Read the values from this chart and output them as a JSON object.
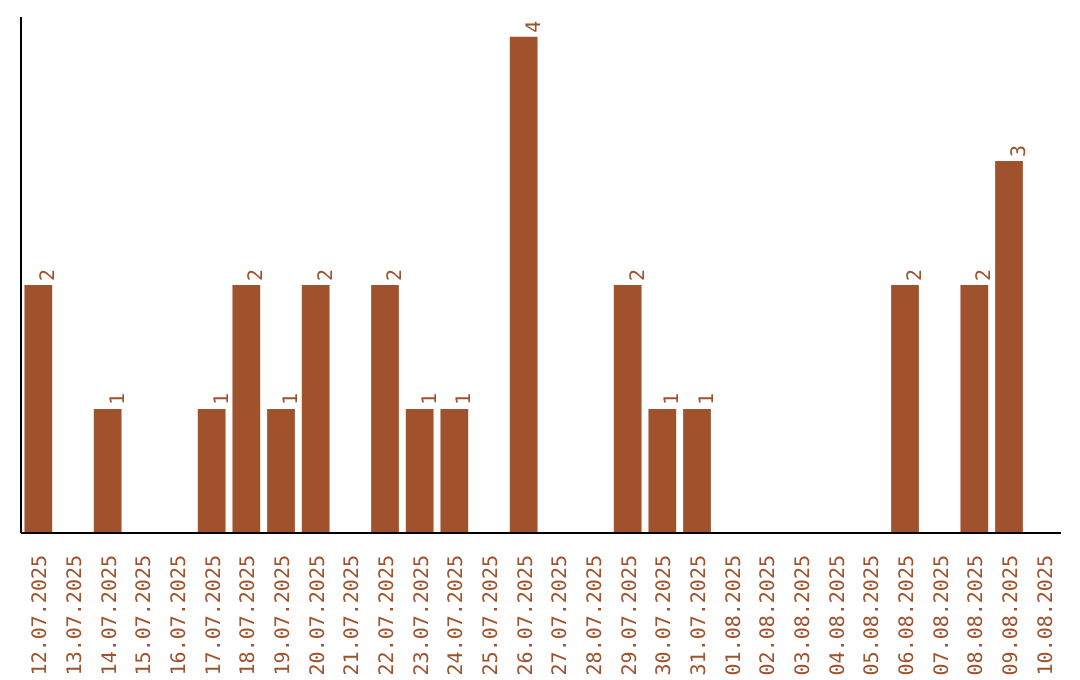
{
  "chart_data": {
    "type": "bar",
    "categories": [
      "12.07.2025",
      "13.07.2025",
      "14.07.2025",
      "15.07.2025",
      "16.07.2025",
      "17.07.2025",
      "18.07.2025",
      "19.07.2025",
      "20.07.2025",
      "21.07.2025",
      "22.07.2025",
      "23.07.2025",
      "24.07.2025",
      "25.07.2025",
      "26.07.2025",
      "27.07.2025",
      "28.07.2025",
      "29.07.2025",
      "30.07.2025",
      "31.07.2025",
      "01.08.2025",
      "02.08.2025",
      "03.08.2025",
      "04.08.2025",
      "05.08.2025",
      "06.08.2025",
      "07.08.2025",
      "08.08.2025",
      "09.08.2025",
      "10.08.2025"
    ],
    "values": [
      2,
      0,
      1,
      0,
      0,
      1,
      2,
      1,
      2,
      0,
      2,
      1,
      1,
      0,
      4,
      0,
      0,
      2,
      1,
      1,
      0,
      0,
      0,
      0,
      0,
      2,
      0,
      2,
      3,
      0
    ],
    "value_labels": [
      "2",
      null,
      "1",
      null,
      null,
      "1",
      "2",
      "1",
      "2",
      null,
      "2",
      "1",
      "1",
      null,
      "4",
      null,
      null,
      "2",
      "1",
      "1",
      null,
      null,
      null,
      null,
      null,
      "2",
      null,
      "2",
      "3",
      null
    ],
    "color": "#a0522d",
    "grid": false,
    "tick_labels": "x"
  }
}
